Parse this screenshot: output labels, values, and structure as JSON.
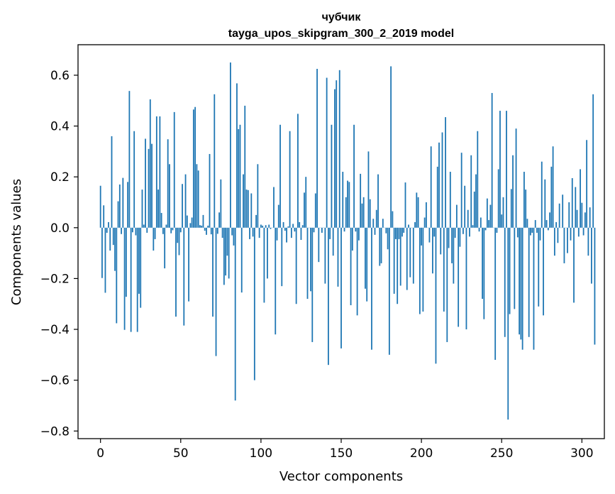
{
  "chart_data": {
    "type": "bar",
    "title": "чубчик",
    "subtitle": "tayga_upos_skipgram_300_2_2019 model",
    "xlabel": "Vector components",
    "ylabel": "Components values",
    "xlim": [
      -14,
      314
    ],
    "ylim": [
      -0.83,
      0.72
    ],
    "xticks": [
      0,
      50,
      100,
      150,
      200,
      250,
      300
    ],
    "yticks": [
      -0.8,
      -0.6,
      -0.4,
      -0.2,
      0.0,
      0.2,
      0.4,
      0.6
    ],
    "ytick_labels": [
      "−0.8",
      "−0.6",
      "−0.4",
      "−0.2",
      "0.0",
      "0.2",
      "0.4",
      "0.6"
    ],
    "bar_color": "#1f77b4",
    "values": [
      0.165,
      -0.198,
      0.088,
      -0.256,
      -0.02,
      0.022,
      -0.09,
      0.36,
      -0.068,
      -0.17,
      -0.376,
      0.104,
      0.17,
      -0.025,
      0.196,
      -0.402,
      -0.272,
      0.18,
      0.538,
      -0.41,
      -0.018,
      0.38,
      -0.03,
      -0.41,
      -0.26,
      -0.315,
      0.15,
      0.012,
      0.35,
      -0.02,
      0.31,
      0.505,
      0.33,
      -0.09,
      -0.045,
      0.438,
      0.15,
      0.438,
      0.058,
      -0.025,
      -0.16,
      0.012,
      0.348,
      0.25,
      -0.022,
      -0.01,
      0.455,
      -0.35,
      -0.06,
      -0.108,
      -0.018,
      0.172,
      -0.385,
      0.21,
      0.048,
      -0.29,
      0.018,
      0.04,
      0.465,
      0.475,
      0.25,
      0.225,
      0.01,
      0.008,
      0.05,
      -0.012,
      -0.028,
      0.008,
      0.29,
      -0.026,
      -0.35,
      0.525,
      -0.505,
      -0.024,
      0.06,
      0.19,
      -0.04,
      -0.225,
      -0.188,
      -0.11,
      -0.2,
      0.65,
      -0.03,
      -0.07,
      -0.68,
      0.568,
      0.388,
      0.405,
      -0.255,
      0.21,
      0.48,
      0.15,
      0.148,
      -0.045,
      0.135,
      -0.035,
      -0.6,
      0.05,
      0.25,
      -0.04,
      0.012,
      0.008,
      -0.295,
      0.01,
      -0.2,
      0.012,
      -0.005,
      0.0,
      0.16,
      -0.42,
      -0.05,
      0.09,
      0.405,
      -0.23,
      0.022,
      -0.012,
      -0.058,
      0.005,
      0.38,
      -0.04,
      0.015,
      -0.015,
      -0.3,
      0.448,
      0.022,
      -0.048,
      0.01,
      0.138,
      0.2,
      -0.28,
      0.0,
      -0.25,
      -0.45,
      -0.018,
      0.135,
      0.625,
      -0.135,
      0.0,
      -0.02,
      0.0,
      -0.22,
      0.59,
      -0.54,
      -0.045,
      0.405,
      -0.11,
      0.545,
      0.58,
      -0.232,
      0.62,
      -0.475,
      0.22,
      -0.015,
      0.12,
      0.185,
      0.18,
      -0.305,
      -0.09,
      0.405,
      -0.015,
      -0.345,
      -0.05,
      0.212,
      0.095,
      0.12,
      -0.24,
      -0.29,
      0.3,
      0.112,
      -0.48,
      0.035,
      -0.028,
      0.07,
      0.21,
      -0.15,
      -0.14,
      0.035,
      0.0,
      -0.022,
      -0.085,
      -0.5,
      0.635,
      0.065,
      -0.26,
      -0.045,
      -0.3,
      -0.045,
      -0.228,
      -0.035,
      -0.02,
      0.178,
      -0.245,
      0.012,
      -0.195,
      0.0,
      -0.22,
      0.022,
      0.138,
      0.12,
      -0.34,
      -0.07,
      -0.33,
      0.04,
      0.1,
      0.0,
      -0.058,
      0.32,
      -0.18,
      -0.035,
      -0.535,
      0.24,
      0.335,
      -0.105,
      0.375,
      -0.33,
      0.435,
      -0.45,
      -0.08,
      0.22,
      -0.14,
      -0.22,
      -0.04,
      0.09,
      -0.39,
      -0.075,
      0.295,
      -0.025,
      0.165,
      -0.4,
      0.07,
      -0.035,
      0.285,
      0.01,
      0.142,
      0.21,
      0.38,
      -0.015,
      0.04,
      -0.28,
      -0.36,
      -0.01,
      0.115,
      0.03,
      0.09,
      0.53,
      0.0,
      -0.52,
      -0.02,
      0.23,
      0.46,
      0.052,
      0.12,
      -0.43,
      0.46,
      -0.755,
      -0.34,
      0.152,
      0.285,
      -0.32,
      0.39,
      -0.038,
      -0.42,
      -0.44,
      -0.48,
      0.22,
      0.15,
      0.035,
      -0.43,
      -0.03,
      -0.02,
      -0.48,
      0.03,
      -0.02,
      -0.31,
      -0.05,
      0.26,
      -0.345,
      0.19,
      0.03,
      -0.01,
      0.06,
      0.24,
      0.32,
      -0.11,
      0.022,
      -0.06,
      0.095,
      0.0,
      0.13,
      -0.14,
      0.0,
      -0.1,
      0.1,
      -0.05,
      0.195,
      -0.295,
      0.16,
      0.07,
      -0.035,
      0.23,
      0.098,
      -0.03,
      0.06,
      0.345,
      -0.11,
      0.08,
      -0.22,
      0.525,
      -0.46
    ]
  }
}
